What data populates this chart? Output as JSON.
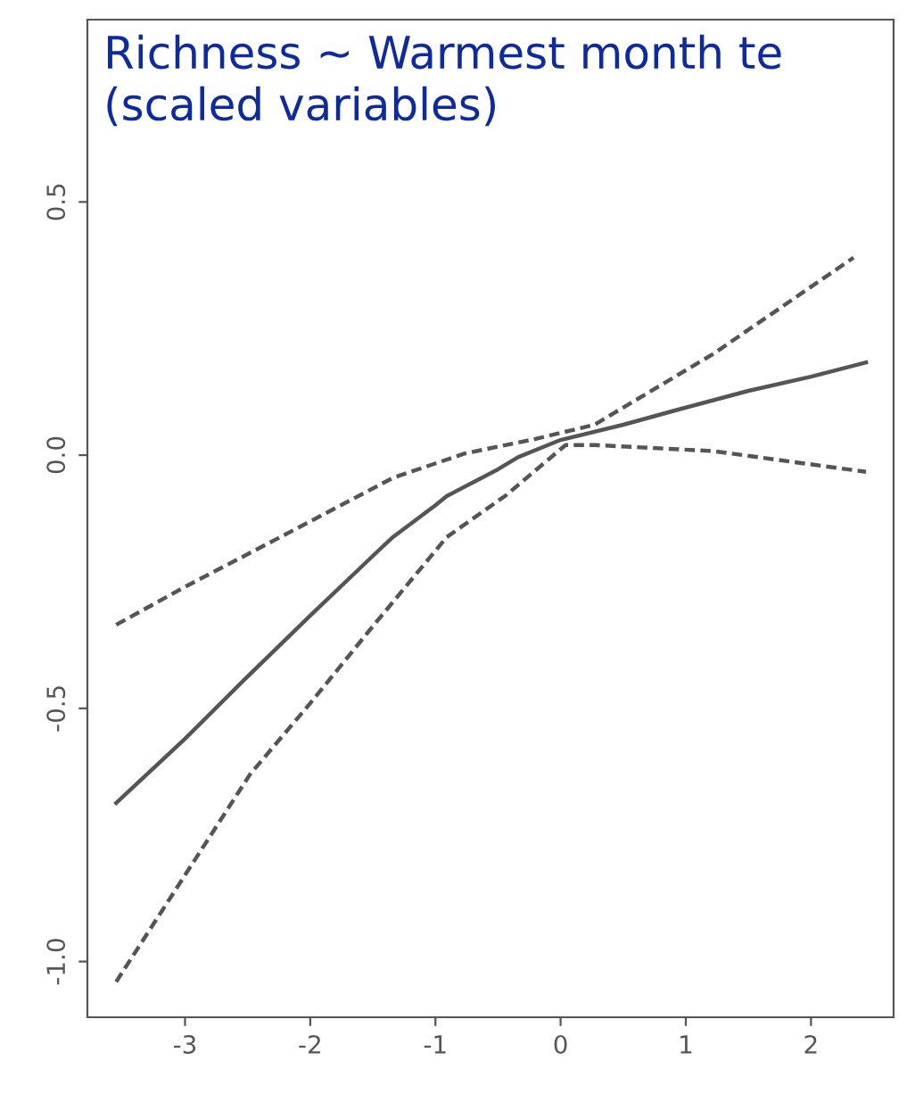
{
  "chart_data": {
    "type": "line",
    "title": "Richness ~ Warmest month te\n(scaled variables)",
    "xlim": [
      -3.78,
      2.66
    ],
    "ylim": [
      -1.11,
      0.86
    ],
    "xticks": [
      -3,
      -2,
      -1,
      0,
      1,
      2
    ],
    "yticks": [
      {
        "value": -1.0,
        "label": "-1.0"
      },
      {
        "value": -0.5,
        "label": "-0.5"
      },
      {
        "value": 0.0,
        "label": "0.0"
      },
      {
        "value": 0.5,
        "label": "0.5"
      }
    ],
    "grid": false,
    "legend": false,
    "series": [
      {
        "color": "#555555",
        "line_style": "solid",
        "x": [
          -3.55,
          -3.0,
          -2.5,
          -2.0,
          -1.5,
          -1.34,
          -1.0,
          -0.91,
          -0.5,
          -0.34,
          0.0,
          0.5,
          0.94,
          1.5,
          2.0,
          2.44
        ],
        "values": [
          -0.687,
          -0.56,
          -0.437,
          -0.317,
          -0.199,
          -0.162,
          -0.099,
          -0.081,
          -0.028,
          -0.004,
          0.03,
          0.06,
          0.09,
          0.127,
          0.155,
          0.183
        ]
      },
      {
        "color": "#555555",
        "line_style": "dashed",
        "x": [
          -3.55,
          -3.0,
          -2.24,
          -1.34,
          -0.77,
          -0.2,
          0.27,
          1.22,
          2.34
        ],
        "values": [
          -0.335,
          -0.26,
          -0.162,
          -0.045,
          0.003,
          0.032,
          0.06,
          0.2,
          0.39
        ]
      },
      {
        "color": "#555555",
        "line_style": "dashed",
        "x": [
          -3.55,
          -2.48,
          -2.0,
          -1.5,
          -0.91,
          -0.44,
          0.04,
          0.27,
          1.22,
          2.44
        ],
        "values": [
          -1.04,
          -0.63,
          -0.49,
          -0.338,
          -0.162,
          -0.08,
          0.02,
          0.02,
          0.008,
          -0.033
        ]
      }
    ]
  }
}
